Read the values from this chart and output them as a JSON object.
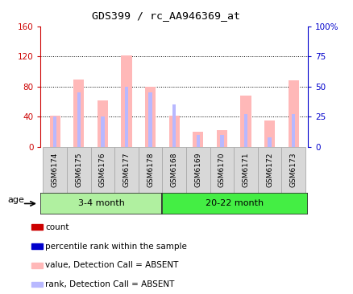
{
  "title": "GDS399 / rc_AA946369_at",
  "samples": [
    "GSM6174",
    "GSM6175",
    "GSM6176",
    "GSM6177",
    "GSM6178",
    "GSM6168",
    "GSM6169",
    "GSM6170",
    "GSM6171",
    "GSM6172",
    "GSM6173"
  ],
  "group1_count": 5,
  "group1_label": "3-4 month",
  "group1_color": "#b0f0a0",
  "group2_label": "20-22 month",
  "group2_color": "#44ee44",
  "absent_value": [
    42,
    90,
    62,
    122,
    80,
    42,
    20,
    22,
    68,
    35,
    88
  ],
  "absent_rank_pct": [
    25,
    45,
    25,
    50,
    45,
    35,
    10,
    10,
    27,
    8,
    27
  ],
  "ylim_left": [
    0,
    160
  ],
  "ylim_right": [
    0,
    100
  ],
  "yticks_left": [
    0,
    40,
    80,
    120,
    160
  ],
  "yticks_right": [
    0,
    25,
    50,
    75,
    100
  ],
  "ytick_labels_right": [
    "0",
    "25",
    "50",
    "75",
    "100%"
  ],
  "left_axis_color": "#cc0000",
  "right_axis_color": "#0000cc",
  "absent_bar_color": "#ffb8b8",
  "absent_rank_color": "#b8b8ff",
  "grid_color": "black",
  "xtick_bg_color": "#d8d8d8",
  "age_label": "age",
  "legend_items": [
    {
      "color": "#cc0000",
      "label": "count"
    },
    {
      "color": "#0000cc",
      "label": "percentile rank within the sample"
    },
    {
      "color": "#ffb8b8",
      "label": "value, Detection Call = ABSENT"
    },
    {
      "color": "#b8b8ff",
      "label": "rank, Detection Call = ABSENT"
    }
  ]
}
